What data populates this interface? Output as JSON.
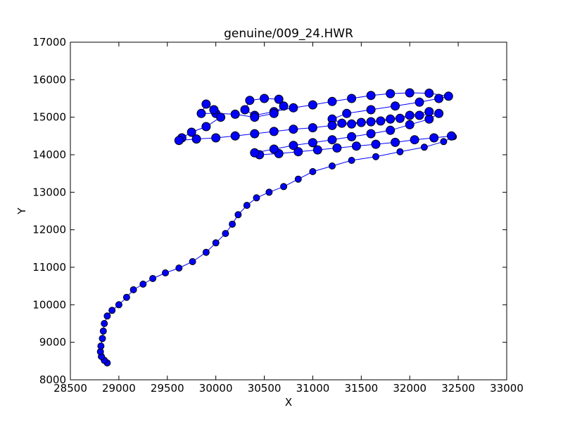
{
  "chart_data": {
    "type": "line",
    "title": "genuine/009_24.HWR",
    "xlabel": "X",
    "ylabel": "Y",
    "xlim": [
      28500,
      33000
    ],
    "ylim": [
      8000,
      17000
    ],
    "xticks": [
      28500,
      29000,
      29500,
      30000,
      30500,
      31000,
      31500,
      32000,
      32500,
      33000
    ],
    "yticks": [
      8000,
      9000,
      10000,
      11000,
      12000,
      13000,
      14000,
      15000,
      16000,
      17000
    ],
    "grid": false,
    "marker": "circle",
    "colors": {
      "marker_fill": "#0000ff",
      "marker_edge": "#000000",
      "line": "#0000ff"
    },
    "series": [
      {
        "points": [
          [
            28880,
            8450
          ],
          [
            28850,
            8520
          ],
          [
            28820,
            8620
          ],
          [
            28810,
            8750
          ],
          [
            28815,
            8900
          ],
          [
            28830,
            9100
          ],
          [
            28840,
            9300
          ],
          [
            28850,
            9500
          ],
          [
            28880,
            9700
          ],
          [
            28930,
            9850
          ],
          [
            29000,
            10000
          ],
          [
            29080,
            10200
          ],
          [
            29150,
            10400
          ],
          [
            29250,
            10550
          ],
          [
            29350,
            10700
          ],
          [
            29480,
            10850
          ],
          [
            29620,
            10980
          ],
          [
            29760,
            11150
          ],
          [
            29900,
            11400
          ],
          [
            30000,
            11650
          ],
          [
            30100,
            11900
          ],
          [
            30170,
            12150
          ],
          [
            30230,
            12400
          ],
          [
            30320,
            12650
          ],
          [
            30420,
            12850
          ],
          [
            30550,
            13000
          ],
          [
            30700,
            13150
          ],
          [
            30850,
            13350
          ],
          [
            31000,
            13550
          ],
          [
            31200,
            13700
          ],
          [
            31400,
            13850
          ],
          [
            31650,
            13950
          ],
          [
            31900,
            14080
          ],
          [
            32150,
            14200
          ],
          [
            32350,
            14350
          ],
          [
            32450,
            14480
          ]
        ]
      },
      {
        "points": [
          [
            32430,
            14500
          ],
          [
            32250,
            14450
          ],
          [
            32050,
            14400
          ],
          [
            31850,
            14330
          ],
          [
            31650,
            14280
          ],
          [
            31450,
            14230
          ],
          [
            31250,
            14180
          ],
          [
            31050,
            14130
          ],
          [
            30850,
            14080
          ],
          [
            30650,
            14030
          ],
          [
            30450,
            14000
          ],
          [
            30400,
            14050
          ],
          [
            30600,
            14150
          ],
          [
            30800,
            14250
          ],
          [
            31000,
            14320
          ],
          [
            31200,
            14400
          ],
          [
            31400,
            14480
          ],
          [
            31600,
            14560
          ],
          [
            31800,
            14650
          ],
          [
            32000,
            14800
          ],
          [
            32200,
            14950
          ],
          [
            32300,
            15100
          ],
          [
            32100,
            15050
          ],
          [
            31900,
            14970
          ],
          [
            31700,
            14900
          ],
          [
            31500,
            14860
          ],
          [
            31300,
            14840
          ],
          [
            31200,
            14950
          ],
          [
            31350,
            15100
          ],
          [
            31600,
            15200
          ],
          [
            31850,
            15300
          ],
          [
            32100,
            15400
          ],
          [
            32300,
            15500
          ],
          [
            32400,
            15560
          ],
          [
            32200,
            15640
          ],
          [
            32000,
            15650
          ],
          [
            31800,
            15630
          ],
          [
            31600,
            15580
          ],
          [
            31400,
            15500
          ],
          [
            31200,
            15420
          ],
          [
            31000,
            15330
          ],
          [
            30800,
            15250
          ],
          [
            30600,
            15150
          ],
          [
            30400,
            15050
          ],
          [
            30300,
            15200
          ],
          [
            30350,
            15450
          ],
          [
            30500,
            15500
          ],
          [
            30650,
            15480
          ],
          [
            30700,
            15300
          ],
          [
            30600,
            15100
          ],
          [
            30400,
            15000
          ],
          [
            30200,
            15080
          ],
          [
            30000,
            15100
          ],
          [
            29850,
            15100
          ],
          [
            29900,
            15350
          ],
          [
            29980,
            15200
          ],
          [
            30050,
            15000
          ],
          [
            29900,
            14750
          ],
          [
            29750,
            14600
          ],
          [
            29650,
            14450
          ],
          [
            29620,
            14380
          ],
          [
            29800,
            14420
          ],
          [
            30000,
            14450
          ],
          [
            30200,
            14500
          ],
          [
            30400,
            14560
          ],
          [
            30600,
            14620
          ],
          [
            30800,
            14680
          ],
          [
            31000,
            14720
          ],
          [
            31200,
            14780
          ],
          [
            31400,
            14820
          ],
          [
            31600,
            14880
          ],
          [
            31800,
            14950
          ],
          [
            32000,
            15050
          ],
          [
            32200,
            15150
          ]
        ]
      }
    ]
  }
}
